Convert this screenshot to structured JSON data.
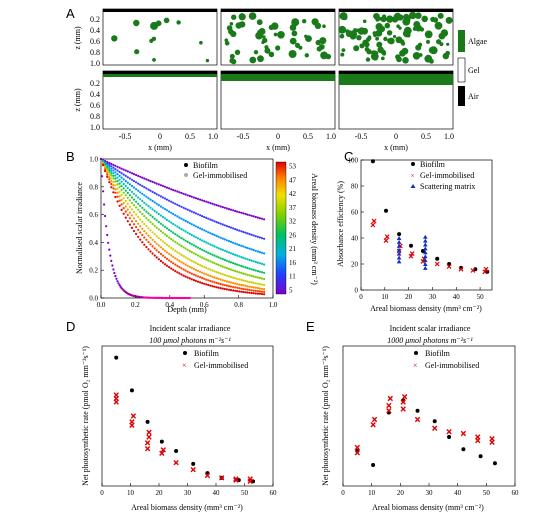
{
  "panels": {
    "A": {
      "label": "A",
      "z_axis_label": "z (mm)",
      "x_axis_label": "x (mm)",
      "z_ticks": [
        "0.2",
        "0.4",
        "0.6",
        "0.8",
        "1.0"
      ],
      "z_ticks_top": [
        "0.2",
        "0.4",
        "0.6",
        "0.8",
        "1.0"
      ],
      "x_ticks": [
        "-0.5",
        "0",
        "0.5",
        "1.0"
      ],
      "legend": {
        "algae": "Algae",
        "gel": "Gel",
        "air": "Air"
      },
      "colors": {
        "algae": "#1a7a1a",
        "air": "#000000",
        "gel": "#ffffff"
      }
    },
    "B": {
      "label": "B",
      "ylabel": "Normalised scalar irradiance",
      "xlabel": "Depth (mm)",
      "legend": [
        "Biofilm",
        "Gel-immobilised"
      ],
      "colorbar_label": "Areal biomass density (mm³ cm⁻²)",
      "colorbar_ticks": [
        "53",
        "47",
        "42",
        "37",
        "32",
        "26",
        "21",
        "16",
        "11",
        "5"
      ]
    },
    "C": {
      "label": "C",
      "ylabel": "Absorbance efficiency (%)",
      "xlabel": "Areal biomass density (mm³ cm⁻²)",
      "legend": [
        "Biofilm",
        "Gel-immobilised",
        "Scattering matrix"
      ]
    },
    "D": {
      "label": "D",
      "title1": "Incident scalar irradiance",
      "title2": "100 μmol photons m⁻²s⁻¹",
      "ylabel": "Net photosynthetic rate (pmol O₂ mm⁻³s⁻¹)",
      "xlabel": "Areal biomass density (mm³ cm⁻²)",
      "legend": [
        "Biofilm",
        "Gel-immobilised"
      ]
    },
    "E": {
      "label": "E",
      "title1": "Incident scalar irradiance",
      "title2": "1000 μmol photons m⁻²s⁻¹",
      "ylabel": "Net photosynthetic rate (pmol O₂ mm⁻³s⁻¹)",
      "xlabel": "Areal biomass density (mm³ cm⁻²)",
      "legend": [
        "Biofilm",
        "Gel-immobilised"
      ]
    }
  },
  "chart_data": [
    {
      "id": "B",
      "type": "line",
      "xlim": [
        0,
        1.0
      ],
      "ylim": [
        0,
        1.0
      ],
      "x_ticks": [
        0.0,
        0.2,
        0.4,
        0.6,
        0.8,
        1.0
      ],
      "y_ticks": [
        0.0,
        0.2,
        0.4,
        0.6,
        0.8,
        1.0
      ],
      "gel_attenuation": [
        0.6,
        0.9,
        1.2,
        1.5,
        1.8,
        2.1,
        2.5,
        2.9,
        3.3,
        3.8
      ],
      "gel_colors": [
        "#7b00c8",
        "#3a3aff",
        "#0090ff",
        "#00c0c0",
        "#00c060",
        "#7ad000",
        "#d0d000",
        "#ff9000",
        "#ff4000",
        "#e00000"
      ],
      "biofilm_attenuation": 22
    },
    {
      "id": "C",
      "type": "scatter",
      "xlim": [
        0,
        55
      ],
      "ylim": [
        0,
        100
      ],
      "x_ticks": [
        0,
        10,
        20,
        30,
        40,
        50
      ],
      "y_ticks": [
        0,
        20,
        40,
        60,
        80,
        100
      ],
      "series": [
        {
          "name": "Biofilm",
          "x": [
            5,
            10.5,
            16,
            21,
            26,
            32,
            37,
            42,
            48,
            53
          ],
          "y": [
            99,
            61,
            43,
            34,
            30,
            24,
            20,
            17,
            16,
            14
          ]
        },
        {
          "name": "Gel-immobilised",
          "x": [
            5,
            5.5,
            10.5,
            11,
            16,
            16.5,
            21,
            21.5,
            26,
            26.5,
            32,
            37,
            42,
            47,
            52,
            52.5
          ],
          "y": [
            50,
            53,
            38,
            41,
            30,
            34,
            26,
            28,
            22,
            24,
            20,
            18,
            16,
            15,
            14,
            16
          ]
        },
        {
          "name": "Scattering matrix",
          "x": [
            16,
            16,
            16,
            16,
            16,
            16,
            16,
            27,
            27,
            27,
            27,
            27,
            27,
            27,
            27,
            27
          ],
          "y": [
            40,
            37,
            34,
            31,
            28,
            25,
            22,
            41,
            38,
            35,
            32,
            29,
            26,
            23,
            20,
            17
          ]
        }
      ]
    },
    {
      "id": "D",
      "type": "scatter",
      "xlim": [
        0,
        60
      ],
      "ylim": [
        0,
        1.2
      ],
      "x_ticks": [
        0,
        10,
        20,
        30,
        40,
        50,
        60
      ],
      "y_ticks": [],
      "series": [
        {
          "name": "Biofilm",
          "x": [
            5,
            10.5,
            16,
            21,
            26,
            32,
            37,
            42,
            48,
            53
          ],
          "y": [
            1.1,
            0.82,
            0.55,
            0.38,
            0.3,
            0.19,
            0.11,
            0.07,
            0.05,
            0.04
          ]
        },
        {
          "name": "Gel-immobilised",
          "x": [
            5,
            5,
            5,
            10.5,
            10.5,
            11,
            16,
            16,
            16.5,
            16.5,
            21,
            21.5,
            26,
            32,
            37,
            42,
            47,
            47,
            52,
            52
          ],
          "y": [
            0.72,
            0.75,
            0.78,
            0.52,
            0.55,
            0.6,
            0.32,
            0.37,
            0.42,
            0.46,
            0.28,
            0.31,
            0.2,
            0.14,
            0.09,
            0.07,
            0.05,
            0.06,
            0.04,
            0.06
          ]
        }
      ]
    },
    {
      "id": "E",
      "type": "scatter",
      "xlim": [
        0,
        60
      ],
      "ylim": [
        0,
        0.8
      ],
      "x_ticks": [
        0,
        10,
        20,
        30,
        40,
        50,
        60
      ],
      "y_ticks": [],
      "series": [
        {
          "name": "Biofilm",
          "x": [
            5,
            10.5,
            16,
            21,
            26,
            32,
            37,
            42,
            48,
            53
          ],
          "y": [
            0.2,
            0.12,
            0.42,
            0.49,
            0.43,
            0.37,
            0.28,
            0.21,
            0.17,
            0.13
          ]
        },
        {
          "name": "Gel-immobilised",
          "x": [
            5,
            5,
            10.5,
            11,
            16,
            16,
            16.5,
            21,
            21,
            21.5,
            26,
            32,
            37,
            42,
            47,
            47,
            52,
            52
          ],
          "y": [
            0.19,
            0.22,
            0.35,
            0.38,
            0.43,
            0.46,
            0.5,
            0.44,
            0.48,
            0.51,
            0.38,
            0.33,
            0.31,
            0.3,
            0.26,
            0.28,
            0.25,
            0.27
          ]
        }
      ]
    }
  ]
}
